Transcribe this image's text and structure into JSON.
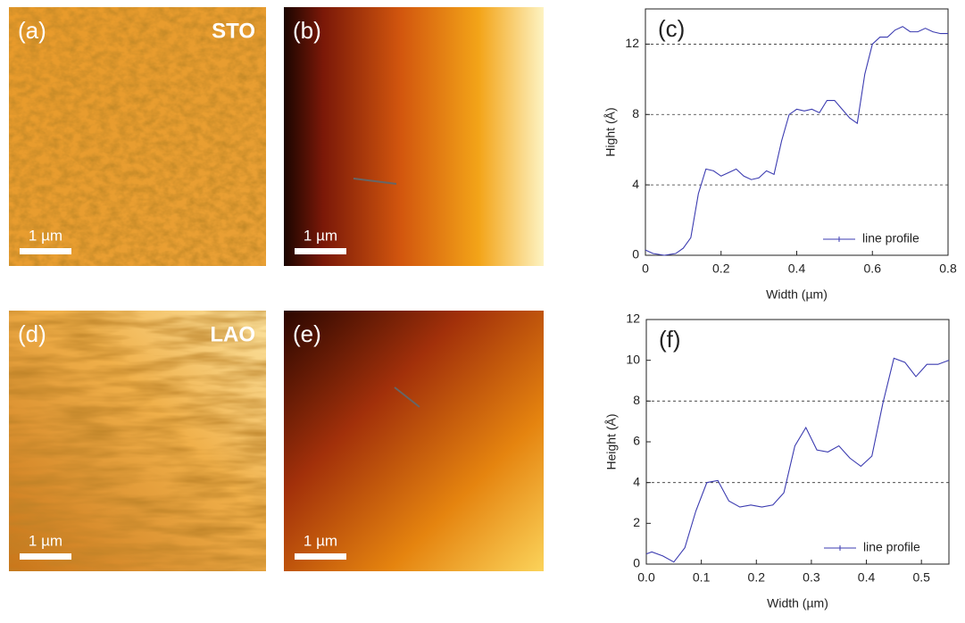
{
  "images": [
    {
      "label": "(a)",
      "sample": "STO",
      "scale_bar": "1 µm"
    },
    {
      "label": "(b)",
      "scale_bar": "1 µm"
    },
    {
      "label": "(d)",
      "sample": "LAO",
      "scale_bar": "1 µm"
    },
    {
      "label": "(e)",
      "scale_bar": "1 µm"
    }
  ],
  "chart_data": [
    {
      "type": "line",
      "annotation": "(c)",
      "xlabel": "Width (µm)",
      "ylabel": "Hight (Å)",
      "x": [
        0,
        0.02,
        0.05,
        0.08,
        0.1,
        0.12,
        0.14,
        0.16,
        0.18,
        0.2,
        0.22,
        0.24,
        0.26,
        0.28,
        0.3,
        0.32,
        0.34,
        0.36,
        0.38,
        0.4,
        0.42,
        0.44,
        0.46,
        0.48,
        0.5,
        0.52,
        0.54,
        0.56,
        0.58,
        0.6,
        0.62,
        0.64,
        0.66,
        0.68,
        0.7,
        0.72,
        0.74,
        0.76,
        0.78,
        0.8
      ],
      "series": [
        {
          "name": "line profile",
          "color": "#3b3bb0",
          "values": [
            0.3,
            0.1,
            0.0,
            0.1,
            0.4,
            1.0,
            3.5,
            4.9,
            4.8,
            4.5,
            4.7,
            4.9,
            4.5,
            4.3,
            4.4,
            4.8,
            4.6,
            6.5,
            8.0,
            8.3,
            8.2,
            8.3,
            8.1,
            8.8,
            8.8,
            8.3,
            7.8,
            7.5,
            10.3,
            12.0,
            12.4,
            12.4,
            12.8,
            13.0,
            12.7,
            12.7,
            12.9,
            12.7,
            12.6,
            12.6
          ]
        }
      ],
      "xlim": [
        0,
        0.8
      ],
      "xticks": [
        0,
        0.2,
        0.4,
        0.6,
        0.8
      ],
      "ylim": [
        0,
        14
      ],
      "yticks": [
        0,
        4,
        8,
        12
      ],
      "hlines": [
        4,
        8,
        12
      ],
      "legend": "lower right"
    },
    {
      "type": "line",
      "annotation": "(f)",
      "xlabel": "Width (µm)",
      "ylabel": "Height (Å)",
      "x": [
        0,
        0.01,
        0.03,
        0.05,
        0.07,
        0.09,
        0.11,
        0.13,
        0.15,
        0.17,
        0.19,
        0.21,
        0.23,
        0.25,
        0.27,
        0.29,
        0.31,
        0.33,
        0.35,
        0.37,
        0.39,
        0.41,
        0.43,
        0.45,
        0.47,
        0.49,
        0.51,
        0.53,
        0.55
      ],
      "series": [
        {
          "name": "line profile",
          "color": "#3b3bb0",
          "values": [
            0.5,
            0.6,
            0.4,
            0.1,
            0.8,
            2.6,
            4.0,
            4.1,
            3.1,
            2.8,
            2.9,
            2.8,
            2.9,
            3.5,
            5.8,
            6.7,
            5.6,
            5.5,
            5.8,
            5.2,
            4.8,
            5.3,
            7.9,
            10.1,
            9.9,
            9.2,
            9.8,
            9.8,
            10.0
          ]
        }
      ],
      "xlim": [
        0,
        0.55
      ],
      "xticks": [
        {
          "value": 0,
          "label": "0.0"
        },
        0.1,
        0.2,
        0.3,
        0.4,
        0.5
      ],
      "ylim": [
        0,
        12
      ],
      "yticks": [
        0,
        2,
        4,
        6,
        8,
        10,
        12
      ],
      "hlines": [
        4,
        8
      ],
      "legend": "lower right"
    }
  ]
}
